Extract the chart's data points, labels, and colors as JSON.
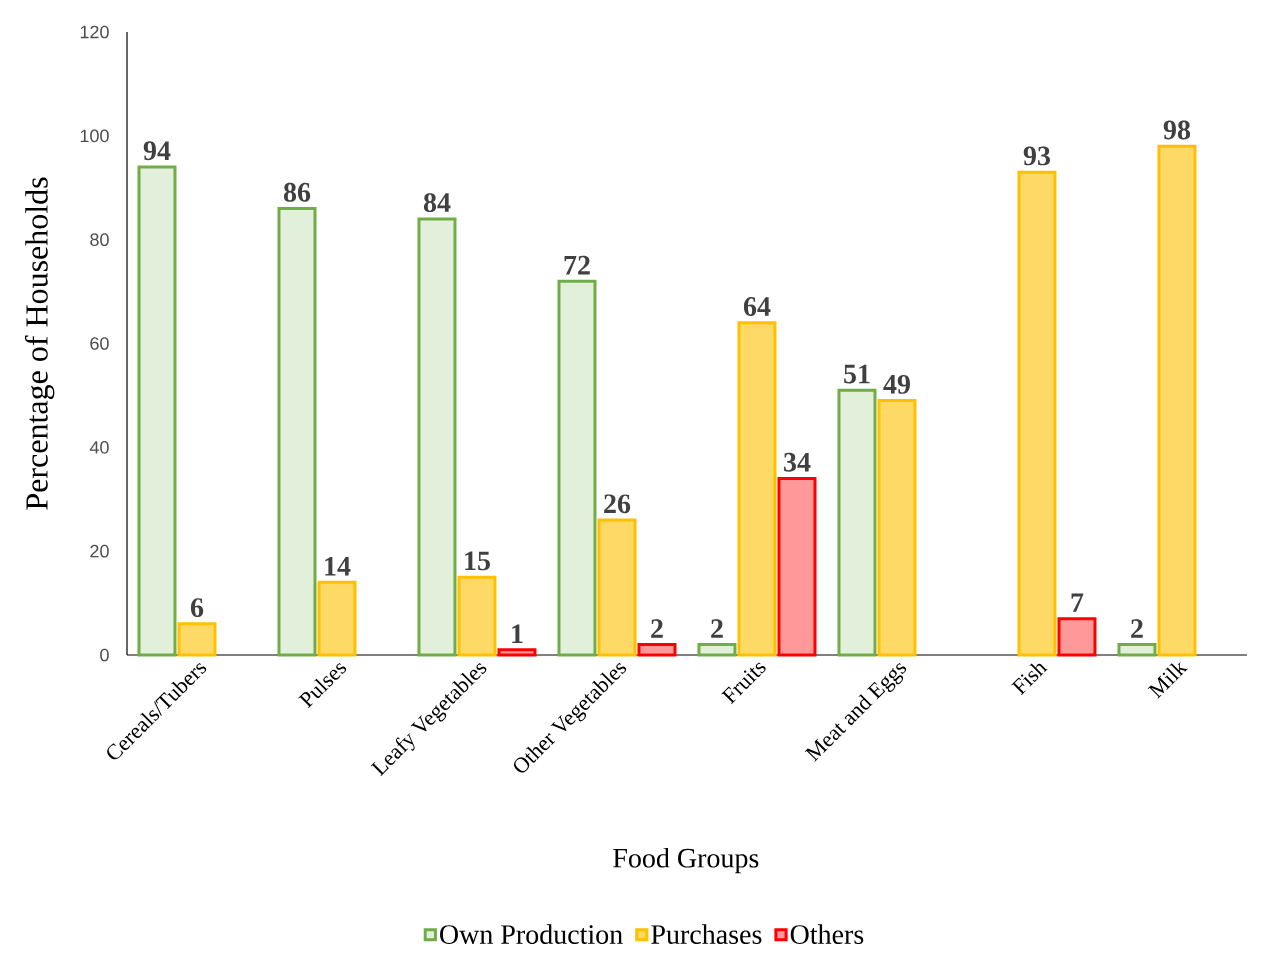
{
  "chart_data": {
    "type": "bar",
    "xlabel": "Food Groups",
    "ylabel": "Percentage of Households",
    "categories": [
      "Cereals/Tubers",
      "Pulses",
      "Leafy Vegetables",
      "Other Vegetables",
      "Fruits",
      "Meat and Eggs",
      "Fish",
      "Milk"
    ],
    "series": [
      {
        "name": "Own Production",
        "color": "#70ad47",
        "values": [
          94,
          86,
          84,
          72,
          2,
          51,
          null,
          2
        ]
      },
      {
        "name": "Purchases",
        "color": "#ffc000",
        "values": [
          6,
          14,
          15,
          26,
          64,
          49,
          93,
          98
        ]
      },
      {
        "name": "Others",
        "color": "#ff0000",
        "values": [
          null,
          null,
          1,
          2,
          34,
          null,
          7,
          null
        ]
      }
    ],
    "ylim": [
      0,
      120
    ],
    "yticks": [
      0,
      20,
      40,
      60,
      80,
      100,
      120
    ],
    "grid": false,
    "legend": "bottom",
    "data_labels": true
  }
}
